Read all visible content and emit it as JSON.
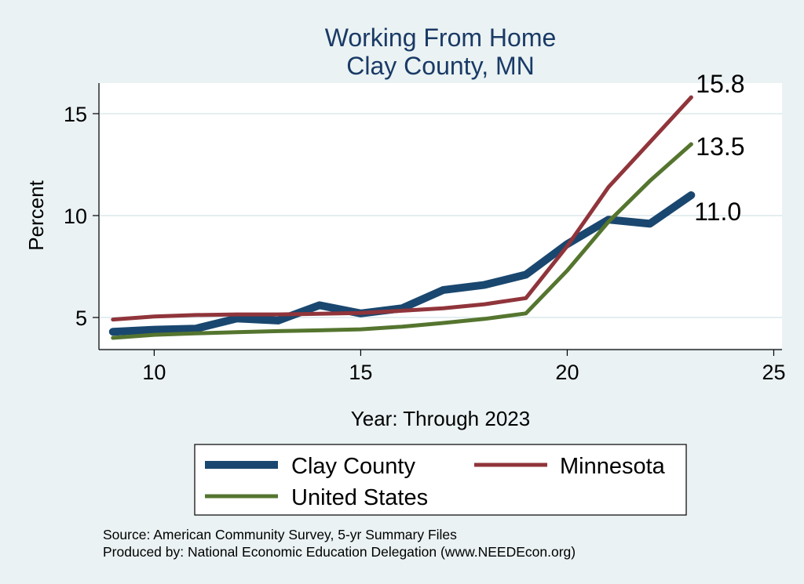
{
  "chart_data": {
    "type": "line",
    "title": [
      "Working From Home",
      "Clay County, MN"
    ],
    "xlabel": "Year: Through 2023",
    "ylabel": "Percent",
    "xlim": [
      8.7,
      25.2
    ],
    "ylim": [
      3.5,
      16.5
    ],
    "xticks": [
      10,
      15,
      20,
      25
    ],
    "yticks": [
      5,
      10,
      15
    ],
    "grid": true,
    "legend_position": "bottom",
    "series": [
      {
        "name": "Clay County",
        "color": "#1a476f",
        "x": [
          9,
          10,
          11,
          12,
          13,
          14,
          15,
          16,
          17,
          18,
          19,
          20,
          21,
          22,
          23
        ],
        "values": [
          4.3,
          4.4,
          4.45,
          4.95,
          4.85,
          5.6,
          5.2,
          5.45,
          6.35,
          6.6,
          7.1,
          8.6,
          9.8,
          9.6,
          11.0
        ],
        "end_label": "11.0"
      },
      {
        "name": "Minnesota",
        "color": "#90353b",
        "x": [
          9,
          10,
          11,
          12,
          13,
          14,
          15,
          16,
          17,
          18,
          19,
          20,
          21,
          22,
          23
        ],
        "values": [
          4.9,
          5.05,
          5.12,
          5.15,
          5.15,
          5.18,
          5.22,
          5.33,
          5.45,
          5.65,
          5.95,
          8.5,
          11.4,
          13.6,
          15.8
        ],
        "end_label": "15.8"
      },
      {
        "name": "United States",
        "color": "#55752f",
        "x": [
          9,
          10,
          11,
          12,
          13,
          14,
          15,
          16,
          17,
          18,
          19,
          20,
          21,
          22,
          23
        ],
        "values": [
          4.0,
          4.15,
          4.22,
          4.28,
          4.33,
          4.37,
          4.42,
          4.55,
          4.73,
          4.93,
          5.2,
          7.3,
          9.7,
          11.7,
          13.5
        ],
        "end_label": "13.5"
      }
    ]
  },
  "notes": {
    "source": "Source: American Community Survey, 5-yr Summary Files",
    "produced_by": "Produced by: National Economic Education Delegation (www.NEEDEcon.org)"
  }
}
